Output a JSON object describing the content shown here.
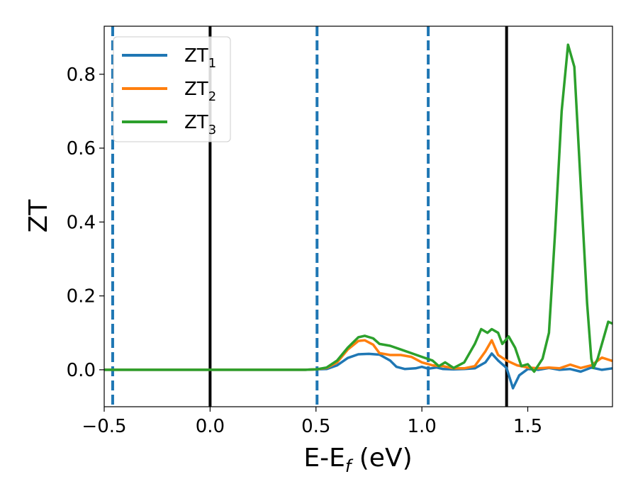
{
  "chart_data": {
    "type": "line",
    "title": "",
    "xlabel": "E-E",
    "xlabel_sub": "f",
    "xlabel_unit": " (eV)",
    "ylabel": "ZT",
    "xlim": [
      -0.5,
      1.9
    ],
    "ylim": [
      -0.1,
      0.93
    ],
    "xticks": [
      -0.5,
      0.0,
      0.5,
      1.0,
      1.5
    ],
    "xtick_labels": [
      "−0.5",
      "0.0",
      "0.5",
      "1.0",
      "1.5"
    ],
    "yticks": [
      0.0,
      0.2,
      0.4,
      0.6,
      0.8
    ],
    "ytick_labels": [
      "0.0",
      "0.2",
      "0.4",
      "0.6",
      "0.8"
    ],
    "grid": false,
    "legend_position": "top-left",
    "vlines": [
      {
        "x": -0.46,
        "style": "dashed",
        "color": "#1f77b4"
      },
      {
        "x": 0.0,
        "style": "solid",
        "color": "#000000"
      },
      {
        "x": 0.505,
        "style": "dashed",
        "color": "#1f77b4"
      },
      {
        "x": 1.03,
        "style": "dashed",
        "color": "#1f77b4"
      },
      {
        "x": 1.4,
        "style": "solid",
        "color": "#000000"
      }
    ],
    "series": [
      {
        "name": "ZT",
        "sub": "1",
        "color": "#1f77b4",
        "points": [
          [
            -0.5,
            0
          ],
          [
            0.45,
            0
          ],
          [
            0.5,
            0.001
          ],
          [
            0.55,
            0.002
          ],
          [
            0.6,
            0.012
          ],
          [
            0.65,
            0.032
          ],
          [
            0.7,
            0.042
          ],
          [
            0.75,
            0.043
          ],
          [
            0.8,
            0.041
          ],
          [
            0.85,
            0.025
          ],
          [
            0.88,
            0.008
          ],
          [
            0.92,
            0.002
          ],
          [
            0.97,
            0.004
          ],
          [
            1.0,
            0.008
          ],
          [
            1.03,
            0.003
          ],
          [
            1.07,
            0.006
          ],
          [
            1.1,
            0.002
          ],
          [
            1.15,
            0.001
          ],
          [
            1.2,
            0.002
          ],
          [
            1.25,
            0.004
          ],
          [
            1.3,
            0.02
          ],
          [
            1.33,
            0.044
          ],
          [
            1.36,
            0.025
          ],
          [
            1.4,
            0.005
          ],
          [
            1.43,
            -0.05
          ],
          [
            1.46,
            -0.015
          ],
          [
            1.5,
            0.002
          ],
          [
            1.55,
            0.0
          ],
          [
            1.6,
            0.005
          ],
          [
            1.65,
            0.0
          ],
          [
            1.7,
            0.002
          ],
          [
            1.75,
            -0.005
          ],
          [
            1.8,
            0.006
          ],
          [
            1.85,
            0.0
          ],
          [
            1.9,
            0.004
          ]
        ]
      },
      {
        "name": "ZT",
        "sub": "2",
        "color": "#ff7f0e",
        "points": [
          [
            -0.5,
            0
          ],
          [
            0.45,
            0
          ],
          [
            0.5,
            0.001
          ],
          [
            0.55,
            0.005
          ],
          [
            0.6,
            0.02
          ],
          [
            0.65,
            0.055
          ],
          [
            0.7,
            0.078
          ],
          [
            0.73,
            0.08
          ],
          [
            0.77,
            0.068
          ],
          [
            0.8,
            0.045
          ],
          [
            0.85,
            0.04
          ],
          [
            0.9,
            0.04
          ],
          [
            0.95,
            0.035
          ],
          [
            1.0,
            0.02
          ],
          [
            1.05,
            0.012
          ],
          [
            1.1,
            0.01
          ],
          [
            1.15,
            0.004
          ],
          [
            1.2,
            0.004
          ],
          [
            1.25,
            0.01
          ],
          [
            1.3,
            0.05
          ],
          [
            1.33,
            0.08
          ],
          [
            1.36,
            0.04
          ],
          [
            1.4,
            0.025
          ],
          [
            1.45,
            0.012
          ],
          [
            1.5,
            0.006
          ],
          [
            1.55,
            0.004
          ],
          [
            1.6,
            0.006
          ],
          [
            1.65,
            0.004
          ],
          [
            1.7,
            0.014
          ],
          [
            1.75,
            0.005
          ],
          [
            1.8,
            0.012
          ],
          [
            1.85,
            0.033
          ],
          [
            1.9,
            0.024
          ]
        ]
      },
      {
        "name": "ZT",
        "sub": "3",
        "color": "#2ca02c",
        "points": [
          [
            -0.5,
            0
          ],
          [
            0.45,
            0
          ],
          [
            0.5,
            0.001
          ],
          [
            0.55,
            0.006
          ],
          [
            0.6,
            0.025
          ],
          [
            0.65,
            0.06
          ],
          [
            0.7,
            0.088
          ],
          [
            0.73,
            0.092
          ],
          [
            0.77,
            0.085
          ],
          [
            0.8,
            0.07
          ],
          [
            0.85,
            0.065
          ],
          [
            0.9,
            0.055
          ],
          [
            0.95,
            0.045
          ],
          [
            1.0,
            0.035
          ],
          [
            1.05,
            0.025
          ],
          [
            1.08,
            0.01
          ],
          [
            1.11,
            0.02
          ],
          [
            1.15,
            0.005
          ],
          [
            1.2,
            0.02
          ],
          [
            1.25,
            0.07
          ],
          [
            1.28,
            0.11
          ],
          [
            1.31,
            0.1
          ],
          [
            1.33,
            0.11
          ],
          [
            1.36,
            0.1
          ],
          [
            1.38,
            0.07
          ],
          [
            1.41,
            0.09
          ],
          [
            1.44,
            0.06
          ],
          [
            1.47,
            0.01
          ],
          [
            1.5,
            0.015
          ],
          [
            1.53,
            -0.005
          ],
          [
            1.57,
            0.03
          ],
          [
            1.6,
            0.1
          ],
          [
            1.63,
            0.38
          ],
          [
            1.66,
            0.7
          ],
          [
            1.69,
            0.88
          ],
          [
            1.72,
            0.82
          ],
          [
            1.75,
            0.5
          ],
          [
            1.78,
            0.18
          ],
          [
            1.8,
            0.03
          ],
          [
            1.81,
            0.005
          ],
          [
            1.83,
            0.03
          ],
          [
            1.86,
            0.09
          ],
          [
            1.88,
            0.13
          ],
          [
            1.9,
            0.125
          ]
        ]
      }
    ]
  }
}
